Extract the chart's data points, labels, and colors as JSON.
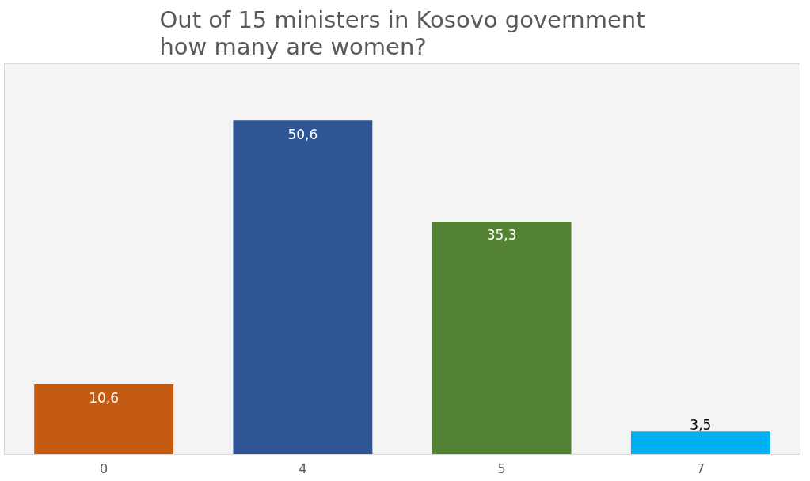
{
  "chart_data": {
    "type": "bar",
    "title": "Out of 15 ministers in Kosovo government\nhow many are women?",
    "categories": [
      "0",
      "4",
      "5",
      "7"
    ],
    "values": [
      10.6,
      50.6,
      35.3,
      3.5
    ],
    "colors": [
      "#c55a11",
      "#2f5597",
      "#548235",
      "#00b0f0"
    ],
    "value_labels": [
      "10,6",
      "50,6",
      "35,3",
      "3,5"
    ],
    "grid": false
  }
}
